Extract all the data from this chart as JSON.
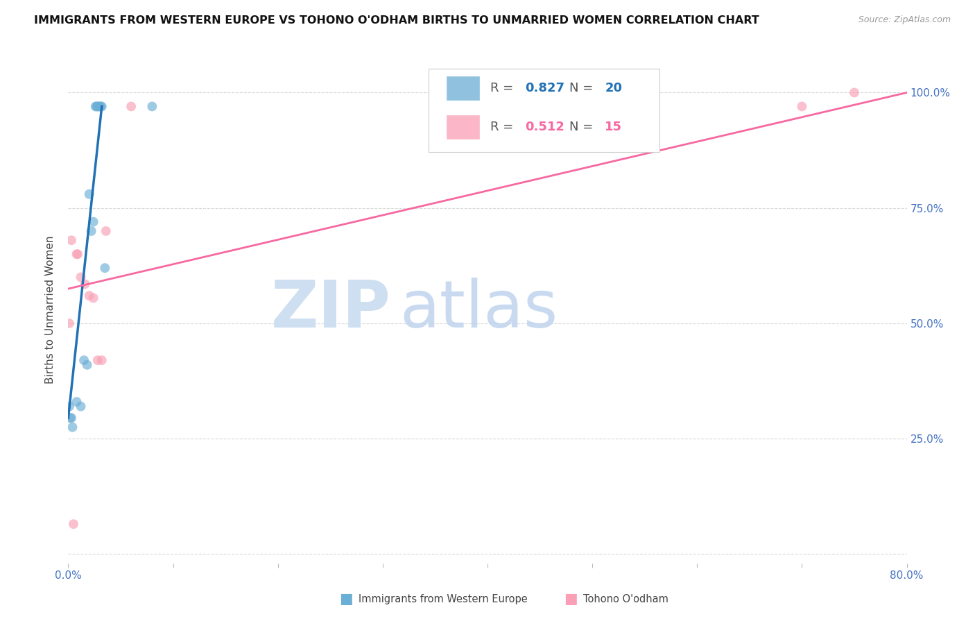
{
  "title": "IMMIGRANTS FROM WESTERN EUROPE VS TOHONO O'ODHAM BIRTHS TO UNMARRIED WOMEN CORRELATION CHART",
  "source": "Source: ZipAtlas.com",
  "ylabel": "Births to Unmarried Women",
  "xlim": [
    0,
    0.8
  ],
  "ylim": [
    -0.02,
    1.08
  ],
  "blue_scatter_x": [
    0.001,
    0.002,
    0.003,
    0.004,
    0.008,
    0.012,
    0.015,
    0.018,
    0.02,
    0.022,
    0.024,
    0.026,
    0.027,
    0.028,
    0.029,
    0.03,
    0.031,
    0.032,
    0.035,
    0.08
  ],
  "blue_scatter_y": [
    0.32,
    0.295,
    0.295,
    0.275,
    0.33,
    0.32,
    0.42,
    0.41,
    0.78,
    0.7,
    0.72,
    0.97,
    0.97,
    0.97,
    0.97,
    0.97,
    0.97,
    0.97,
    0.62,
    0.97
  ],
  "pink_scatter_x": [
    0.001,
    0.003,
    0.005,
    0.008,
    0.009,
    0.012,
    0.016,
    0.02,
    0.024,
    0.028,
    0.032,
    0.036,
    0.06,
    0.7,
    0.75
  ],
  "pink_scatter_y": [
    0.5,
    0.68,
    0.065,
    0.65,
    0.65,
    0.6,
    0.585,
    0.56,
    0.555,
    0.42,
    0.42,
    0.7,
    0.97,
    0.97,
    1.0
  ],
  "blue_line_x": [
    0.0,
    0.032
  ],
  "blue_line_y": [
    0.295,
    0.97
  ],
  "pink_line_x": [
    0.0,
    0.8
  ],
  "pink_line_y": [
    0.575,
    1.0
  ],
  "blue_color": "#6baed6",
  "pink_color": "#fa9fb5",
  "blue_line_color": "#2171b5",
  "pink_line_color": "#f768a1",
  "R_blue": "0.827",
  "N_blue": "20",
  "R_pink": "0.512",
  "N_pink": "15",
  "legend_label_blue": "Immigrants from Western Europe",
  "legend_label_pink": "Tohono O'odham",
  "background_color": "#ffffff",
  "grid_color": "#d8d8d8",
  "axis_color": "#4472c4",
  "marker_size": 100,
  "yticks": [
    0.0,
    0.25,
    0.5,
    0.75,
    1.0
  ],
  "xticks": [
    0.0,
    0.1,
    0.2,
    0.3,
    0.4,
    0.5,
    0.6,
    0.7,
    0.8
  ]
}
